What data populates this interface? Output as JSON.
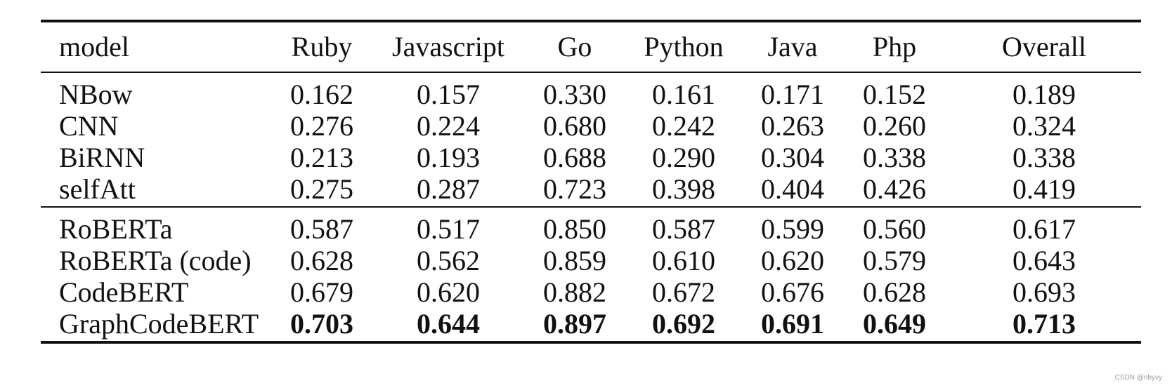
{
  "table": {
    "headers": [
      "model",
      "Ruby",
      "Javascript",
      "Go",
      "Python",
      "Java",
      "Php",
      "Overall"
    ],
    "group_a": [
      {
        "model": "NBow",
        "values": [
          "0.162",
          "0.157",
          "0.330",
          "0.161",
          "0.171",
          "0.152",
          "0.189"
        ]
      },
      {
        "model": "CNN",
        "values": [
          "0.276",
          "0.224",
          "0.680",
          "0.242",
          "0.263",
          "0.260",
          "0.324"
        ]
      },
      {
        "model": "BiRNN",
        "values": [
          "0.213",
          "0.193",
          "0.688",
          "0.290",
          "0.304",
          "0.338",
          "0.338"
        ]
      },
      {
        "model": "selfAtt",
        "values": [
          "0.275",
          "0.287",
          "0.723",
          "0.398",
          "0.404",
          "0.426",
          "0.419"
        ]
      }
    ],
    "group_b": [
      {
        "model": "RoBERTa",
        "values": [
          "0.587",
          "0.517",
          "0.850",
          "0.587",
          "0.599",
          "0.560",
          "0.617"
        ]
      },
      {
        "model": "RoBERTa (code)",
        "values": [
          "0.628",
          "0.562",
          "0.859",
          "0.610",
          "0.620",
          "0.579",
          "0.643"
        ]
      },
      {
        "model": "CodeBERT",
        "values": [
          "0.679",
          "0.620",
          "0.882",
          "0.672",
          "0.676",
          "0.628",
          "0.693"
        ]
      },
      {
        "model": "GraphCodeBERT",
        "values": [
          "0.703",
          "0.644",
          "0.897",
          "0.692",
          "0.691",
          "0.649",
          "0.713"
        ],
        "bold": true
      }
    ]
  },
  "watermark": "CSDN @nbyvy"
}
